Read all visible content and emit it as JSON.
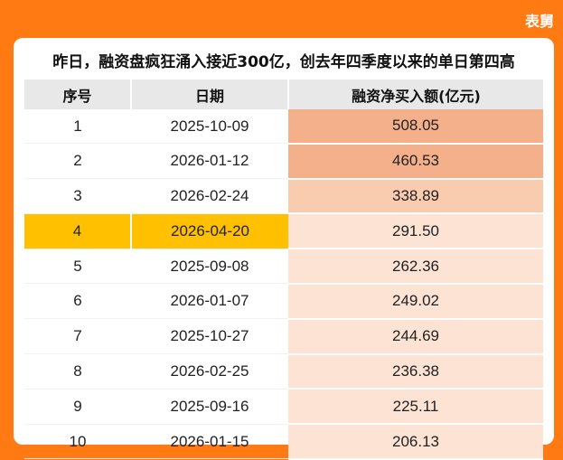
{
  "brand": "表舅",
  "title": "昨日，融资盘疯狂涌入接近300亿，创去年四季度以来的单日第四高",
  "colors": {
    "page_bg": "#ff7a12",
    "highlight": "#ffc000",
    "bar_strong": "#f4b08a",
    "bar_medium": "#f9ccb0",
    "bar_light": "#fde3d4"
  },
  "table": {
    "headers": [
      "序号",
      "日期",
      "融资净买入额(亿元)"
    ],
    "rows": [
      {
        "rank": "1",
        "date": "2025-10-09",
        "amount": "508.05"
      },
      {
        "rank": "2",
        "date": "2026-01-12",
        "amount": "460.53"
      },
      {
        "rank": "3",
        "date": "2026-02-24",
        "amount": "338.89"
      },
      {
        "rank": "4",
        "date": "2026-04-20",
        "amount": "291.50"
      },
      {
        "rank": "5",
        "date": "2025-09-08",
        "amount": "262.36"
      },
      {
        "rank": "6",
        "date": "2026-01-07",
        "amount": "249.02"
      },
      {
        "rank": "7",
        "date": "2025-10-27",
        "amount": "244.69"
      },
      {
        "rank": "8",
        "date": "2026-02-25",
        "amount": "236.38"
      },
      {
        "rank": "9",
        "date": "2025-09-16",
        "amount": "225.11"
      },
      {
        "rank": "10",
        "date": "2026-01-15",
        "amount": "206.13"
      }
    ],
    "highlighted_rank": "4"
  }
}
